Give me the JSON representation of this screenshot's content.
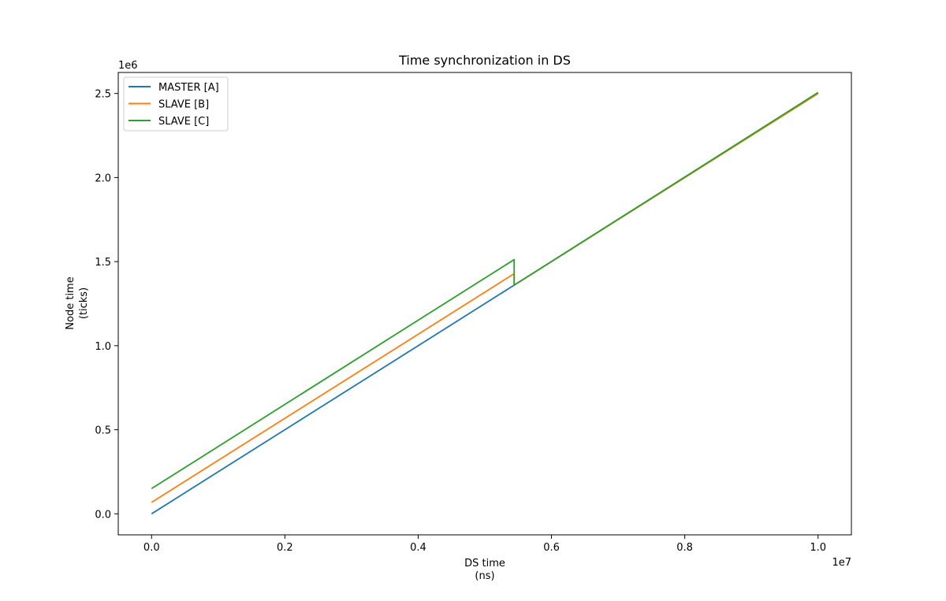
{
  "chart_data": {
    "type": "line",
    "title": "Time synchronization in DS",
    "xlabel": [
      "DS time",
      "(ns)"
    ],
    "ylabel": [
      "Node time",
      "(ticks)"
    ],
    "x_offset_text": "1e7",
    "y_offset_text": "1e6",
    "xlim": [
      -500000,
      10500000
    ],
    "ylim": [
      -125000,
      2625000
    ],
    "xticks": [
      0,
      2000000,
      4000000,
      6000000,
      8000000,
      10000000
    ],
    "xtick_labels": [
      "0.0",
      "0.2",
      "0.4",
      "0.6",
      "0.8",
      "1.0"
    ],
    "yticks": [
      0,
      500000,
      1000000,
      1500000,
      2000000,
      2500000
    ],
    "ytick_labels": [
      "0.0",
      "0.5",
      "1.0",
      "1.5",
      "2.0",
      "2.5"
    ],
    "grid": false,
    "legend_position": "top-left",
    "series": [
      {
        "name": "MASTER [A]",
        "color": "#1f77b4",
        "points": [
          [
            0,
            0
          ],
          [
            5440000,
            1360000
          ],
          [
            10000000,
            2500000
          ]
        ]
      },
      {
        "name": "SLAVE [B]",
        "color": "#ff7f0e",
        "points": [
          [
            0,
            68000
          ],
          [
            5440000,
            1428000
          ],
          [
            5440000,
            1360000
          ],
          [
            10000000,
            2500000
          ]
        ]
      },
      {
        "name": "SLAVE [C]",
        "color": "#2ca02c",
        "points": [
          [
            0,
            150000
          ],
          [
            5440000,
            1512000
          ],
          [
            5440000,
            1360000
          ],
          [
            10000000,
            2506000
          ]
        ]
      }
    ]
  }
}
